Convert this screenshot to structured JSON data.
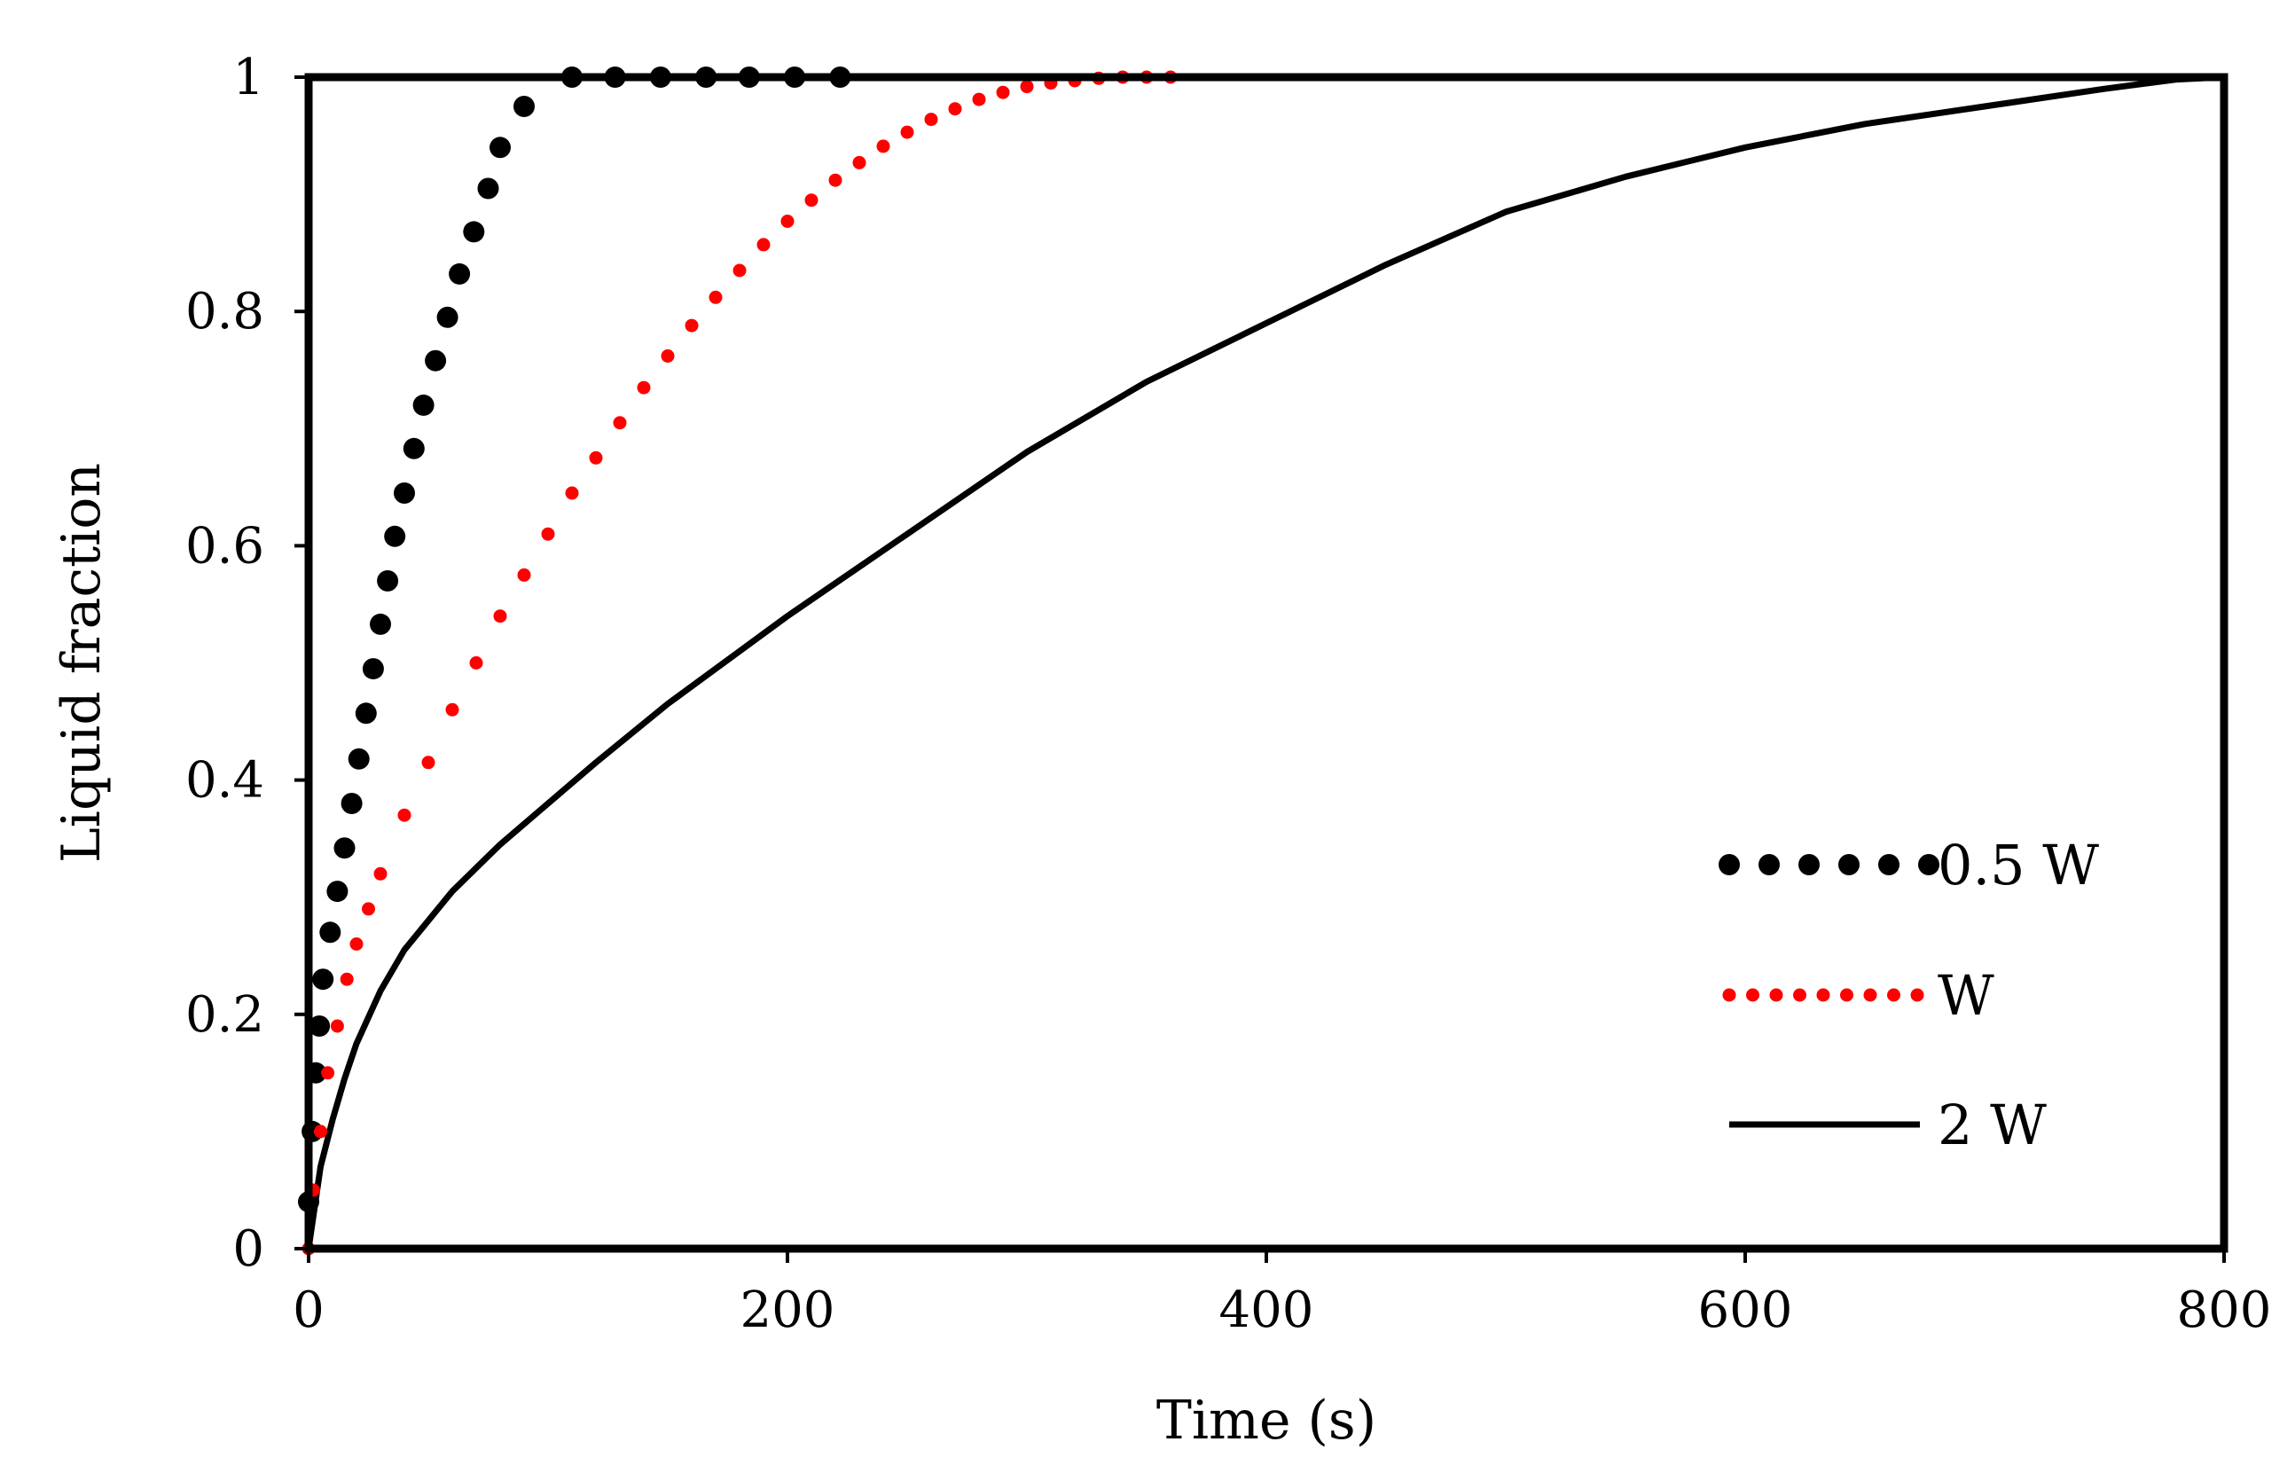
{
  "chart_data": {
    "type": "line",
    "title": "",
    "xlabel": "Time (s)",
    "ylabel": "Liquid fraction",
    "xlim": [
      0,
      800
    ],
    "ylim": [
      0,
      1
    ],
    "xticks": [
      0,
      200,
      400,
      600,
      800
    ],
    "yticks": [
      0,
      0.2,
      0.4,
      0.6,
      0.8,
      1
    ],
    "xtick_labels": [
      "0",
      "200",
      "400",
      "600",
      "800"
    ],
    "ytick_labels": [
      "0",
      "0.2",
      "0.4",
      "0.6",
      "0.8",
      "1"
    ],
    "grid": false,
    "legend_position": "lower-right",
    "series": [
      {
        "name": "0.5 W",
        "style": "round-dots",
        "color": "#000000",
        "x": [
          0,
          1.5,
          3,
          4.5,
          6,
          9,
          12,
          15,
          18,
          21,
          24,
          27,
          30,
          33,
          36,
          40,
          44,
          48,
          53,
          58,
          63,
          69,
          75,
          80,
          90,
          110,
          128,
          147,
          166,
          184,
          203,
          222
        ],
        "y": [
          0.04,
          0.1,
          0.15,
          0.19,
          0.23,
          0.27,
          0.305,
          0.342,
          0.38,
          0.418,
          0.457,
          0.495,
          0.533,
          0.57,
          0.608,
          0.645,
          0.683,
          0.72,
          0.758,
          0.795,
          0.832,
          0.868,
          0.905,
          0.94,
          0.975,
          1.0,
          1.0,
          1.0,
          1.0,
          1.0,
          1.0,
          1.0
        ]
      },
      {
        "name": "W",
        "style": "red-dots",
        "color": "#ff0000",
        "x": [
          0,
          2,
          5,
          8,
          12,
          16,
          20,
          25,
          30,
          40,
          50,
          60,
          70,
          80,
          90,
          100,
          110,
          120,
          130,
          140,
          150,
          160,
          170,
          180,
          190,
          200,
          210,
          220,
          230,
          240,
          250,
          260,
          270,
          280,
          290,
          300,
          310,
          320,
          330,
          340,
          350,
          360
        ],
        "y": [
          0.0,
          0.05,
          0.1,
          0.15,
          0.19,
          0.23,
          0.26,
          0.29,
          0.32,
          0.37,
          0.415,
          0.46,
          0.5,
          0.54,
          0.575,
          0.61,
          0.645,
          0.675,
          0.705,
          0.735,
          0.762,
          0.788,
          0.812,
          0.835,
          0.857,
          0.877,
          0.895,
          0.912,
          0.927,
          0.941,
          0.953,
          0.964,
          0.973,
          0.981,
          0.987,
          0.992,
          0.995,
          0.997,
          0.999,
          1.0,
          1.0,
          1.0
        ]
      },
      {
        "name": "2 W",
        "style": "solid",
        "color": "#000000",
        "x": [
          0,
          5,
          10,
          15,
          20,
          30,
          40,
          50,
          60,
          80,
          100,
          120,
          150,
          180,
          200,
          250,
          300,
          350,
          400,
          450,
          500,
          550,
          600,
          650,
          700,
          750,
          780,
          800
        ],
        "y": [
          0.0,
          0.07,
          0.11,
          0.145,
          0.175,
          0.22,
          0.255,
          0.28,
          0.305,
          0.345,
          0.38,
          0.415,
          0.465,
          0.51,
          0.54,
          0.61,
          0.68,
          0.74,
          0.79,
          0.84,
          0.885,
          0.915,
          0.94,
          0.96,
          0.975,
          0.99,
          0.998,
          1.0
        ]
      }
    ]
  }
}
